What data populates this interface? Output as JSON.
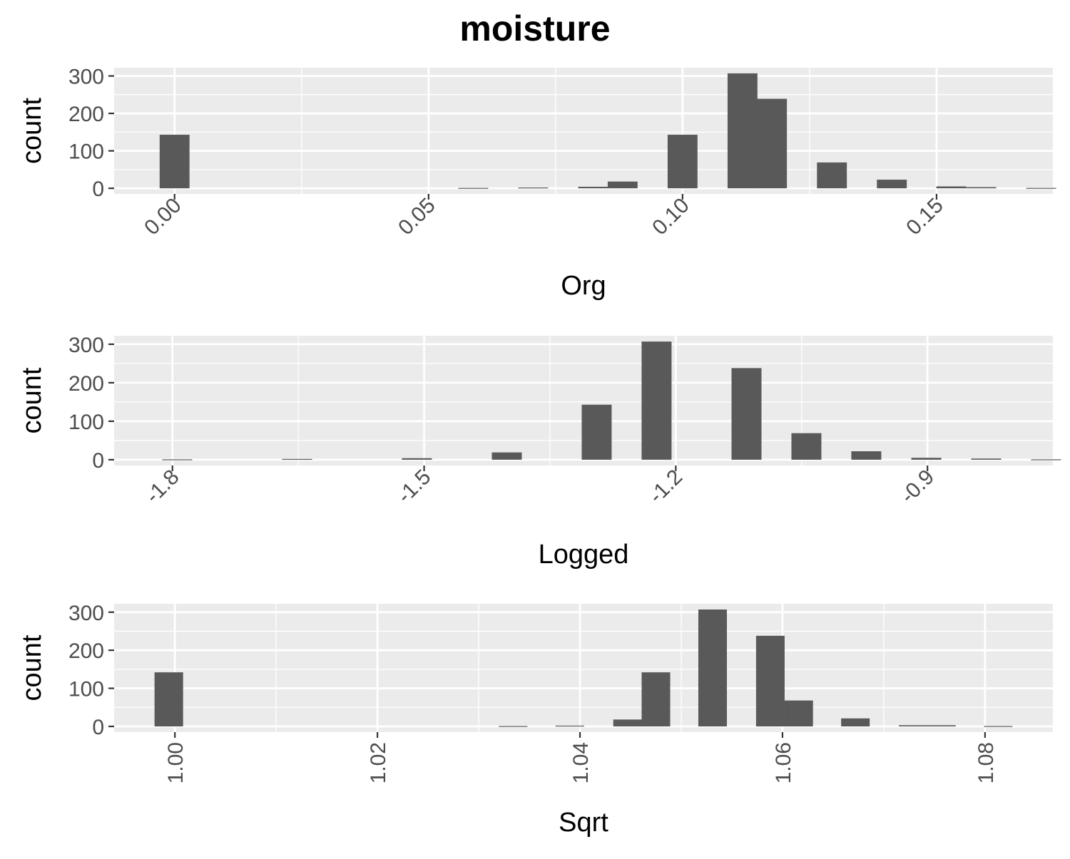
{
  "title": "moisture",
  "colors": {
    "panel": "#ebebeb",
    "grid": "#ffffff",
    "bar": "#595959",
    "tick_text": "#4d4d4d"
  },
  "chart_data": [
    {
      "type": "bar",
      "subtype": "histogram",
      "xlabel": "Org",
      "ylabel": "count",
      "xlim": [
        -0.0119,
        0.1729
      ],
      "ylim": [
        -15,
        322
      ],
      "xticks": [
        0.0,
        0.05,
        0.1,
        0.15
      ],
      "xtick_labels": [
        "0.00",
        "0.05",
        "0.10",
        "0.15"
      ],
      "xtick_rotation": -45,
      "yticks": [
        0,
        100,
        200,
        300
      ],
      "ytick_labels": [
        "0",
        "100",
        "200",
        "300"
      ],
      "bin_width": 0.00588,
      "bins": [
        {
          "x": 0.0,
          "count": 143
        },
        {
          "x": 0.0588,
          "count": 1
        },
        {
          "x": 0.0706,
          "count": 2
        },
        {
          "x": 0.0824,
          "count": 4
        },
        {
          "x": 0.0882,
          "count": 18
        },
        {
          "x": 0.1,
          "count": 143
        },
        {
          "x": 0.1118,
          "count": 307
        },
        {
          "x": 0.1176,
          "count": 239
        },
        {
          "x": 0.1294,
          "count": 69
        },
        {
          "x": 0.1412,
          "count": 23
        },
        {
          "x": 0.1529,
          "count": 5
        },
        {
          "x": 0.1588,
          "count": 3
        },
        {
          "x": 0.1706,
          "count": 1
        }
      ]
    },
    {
      "type": "bar",
      "subtype": "histogram",
      "xlabel": "Logged",
      "ylabel": "count",
      "xlim": [
        -1.8695,
        -0.7505
      ],
      "ylim": [
        -15,
        322
      ],
      "xticks": [
        -1.8,
        -1.5,
        -1.2,
        -0.9
      ],
      "xtick_labels": [
        "-1.8",
        "-1.5",
        "-1.2",
        "-0.9"
      ],
      "xtick_rotation": -45,
      "yticks": [
        0,
        100,
        200,
        300
      ],
      "ytick_labels": [
        "0",
        "100",
        "200",
        "300"
      ],
      "bin_width": 0.0357,
      "bins": [
        {
          "x": -1.7943,
          "count": 1
        },
        {
          "x": -1.6514,
          "count": 2
        },
        {
          "x": -1.5086,
          "count": 4
        },
        {
          "x": -1.4014,
          "count": 19
        },
        {
          "x": -1.2943,
          "count": 143
        },
        {
          "x": -1.2229,
          "count": 307
        },
        {
          "x": -1.1157,
          "count": 238
        },
        {
          "x": -1.0443,
          "count": 69
        },
        {
          "x": -0.9729,
          "count": 22
        },
        {
          "x": -0.9014,
          "count": 5
        },
        {
          "x": -0.83,
          "count": 3
        },
        {
          "x": -0.7586,
          "count": 1
        }
      ]
    },
    {
      "type": "bar",
      "subtype": "histogram",
      "xlabel": "Sqrt",
      "ylabel": "count",
      "xlim": [
        0.994,
        1.0867
      ],
      "ylim": [
        -15,
        322
      ],
      "xticks": [
        1.0,
        1.02,
        1.04,
        1.06,
        1.08
      ],
      "xtick_labels": [
        "1.00",
        "1.02",
        "1.04",
        "1.06",
        "1.08"
      ],
      "xtick_rotation": -90,
      "yticks": [
        0,
        100,
        200,
        300
      ],
      "ytick_labels": [
        "0",
        "100",
        "200",
        "300"
      ],
      "bin_width": 0.00282,
      "bins": [
        {
          "x": 0.9994,
          "count": 142
        },
        {
          "x": 1.0334,
          "count": 1
        },
        {
          "x": 1.039,
          "count": 2
        },
        {
          "x": 1.0447,
          "count": 18
        },
        {
          "x": 1.0475,
          "count": 142
        },
        {
          "x": 1.0531,
          "count": 307
        },
        {
          "x": 1.0588,
          "count": 238
        },
        {
          "x": 1.0616,
          "count": 68
        },
        {
          "x": 1.0672,
          "count": 21
        },
        {
          "x": 1.0729,
          "count": 3
        },
        {
          "x": 1.0757,
          "count": 3
        },
        {
          "x": 1.0813,
          "count": 1
        }
      ]
    }
  ]
}
